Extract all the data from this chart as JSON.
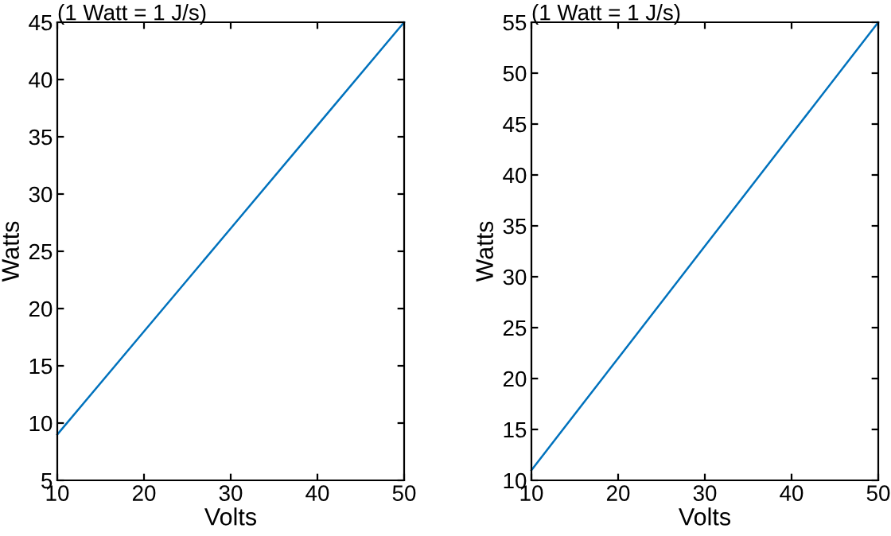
{
  "chart_data": [
    {
      "type": "line",
      "title": "(1 Watt = 1 J/s)",
      "xlabel": "Volts",
      "ylabel": "Watts",
      "x": [
        10,
        20,
        30,
        40,
        50
      ],
      "series": [
        {
          "color": "#0072bd",
          "values": [
            9,
            18,
            27,
            36,
            45
          ]
        }
      ],
      "xlim": [
        10,
        50
      ],
      "xticks": [
        10,
        20,
        30,
        40,
        50
      ],
      "ylim": [
        5,
        45
      ],
      "yticks": [
        5,
        10,
        15,
        20,
        25,
        30,
        35,
        40,
        45
      ],
      "grid": false,
      "line_style": "solid"
    },
    {
      "type": "line",
      "title": "(1 Watt = 1 J/s)",
      "xlabel": "Volts",
      "ylabel": "Watts",
      "x": [
        10,
        20,
        30,
        40,
        50
      ],
      "series": [
        {
          "color": "#0072bd",
          "values": [
            11,
            22,
            33,
            44,
            55
          ]
        }
      ],
      "xlim": [
        10,
        50
      ],
      "xticks": [
        10,
        20,
        30,
        40,
        50
      ],
      "ylim": [
        10,
        55
      ],
      "yticks": [
        10,
        15,
        20,
        25,
        30,
        35,
        40,
        45,
        50,
        55
      ],
      "grid": false,
      "line_style": "solid"
    }
  ]
}
